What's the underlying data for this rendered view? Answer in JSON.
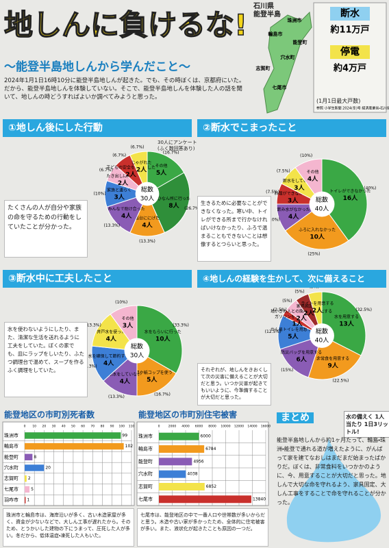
{
  "header": {
    "title": "地しんに負けるな!",
    "subtitle": "〜能登半島地しんから学んだこと〜",
    "intro": "2024年1月1日16時10分に能登半島地しんが起きた。でも、その時ぼくは、京都府にいた。だから、能登半島地しんを体験していない。そこで、能登半島地しんを体験した人の話を聞いて、地しんの時どうすればよいか調べてみようと思った。"
  },
  "map": {
    "title": "石川県 能登半島",
    "towns": [
      "珠洲市",
      "輪島市",
      "能登町",
      "穴水町",
      "志賀町",
      "七尾市"
    ]
  },
  "info": {
    "items": [
      {
        "label": "断水",
        "value": "約11万戸"
      },
      {
        "label": "停電",
        "value": "約4万戸"
      }
    ],
    "note": "(1月1日最大戸数)",
    "source": "参照 小学生新聞 2024(冬)号 経済産業省・石川県HP"
  },
  "chart_data": [
    {
      "type": "pie",
      "title": "①地しん後にした行動",
      "note": "30人にアンケート(ふく数回答あり)",
      "total_title": "総数",
      "total": "30人",
      "categories": [
        "その他",
        "ひなん所に行った",
        "高台ににげた",
        "みんなで助け合った",
        "家族と連らく",
        "たき出しに行った",
        "子どもの安全を確にんした",
        "じゃがれた"
      ],
      "values": [
        5,
        8,
        4,
        4,
        3,
        2,
        2,
        2
      ],
      "value_labels": [
        "5人",
        "8人",
        "4人",
        "4人",
        "3人",
        "2人",
        "2人",
        "2人"
      ],
      "percent_labels": [
        "(16.7%)",
        "(26.7%)",
        "(13.3%)",
        "(13.3%)",
        "(10%)",
        "(6.7%)",
        "(6.7%)",
        "(6.7%)"
      ],
      "colors": [
        "#3aa845",
        "#2f8f3a",
        "#f29a1e",
        "#8a5cb5",
        "#3d7fd6",
        "#f4b6cf",
        "#c9302c",
        "#f3e34a"
      ],
      "comment": "たくさんの人が自分や家族の命を守るための行動をしていたことが分かった。"
    },
    {
      "type": "pie",
      "title": "②断水でこまったこと",
      "total_title": "総数",
      "total": "40人",
      "categories": [
        "トイレができなかった",
        "ふろに入れなかった",
        "飲み水がなかった",
        "料理ができなかった",
        "断水をしていない",
        "その他"
      ],
      "values": [
        16,
        10,
        4,
        3,
        3,
        4
      ],
      "value_labels": [
        "16人",
        "10人",
        "4人",
        "3人",
        "3人",
        "4人"
      ],
      "percent_labels": [
        "(40%)",
        "(25%)",
        "(10%)",
        "(7.5%)",
        "(7.5%)",
        "(10%)"
      ],
      "colors": [
        "#3aa845",
        "#f29a1e",
        "#8a5cb5",
        "#c9302c",
        "#f3e34a",
        "#f4b6cf"
      ],
      "comment": "生きるために必要なことができなくなった。寒い中、トイレができる所まで行かなければいけなかったり、ふろで温まることもできないことは想像するとつらいと思った。"
    },
    {
      "type": "pie",
      "title": "③断水中に工夫したこと",
      "total_title": "総数",
      "total": "30人",
      "categories": [
        "水をもらいに行った",
        "紙皿や紙コップを使う",
        "断水をしていない",
        "水を確保して節約する",
        "井戸水を使った",
        "その他"
      ],
      "values": [
        10,
        5,
        4,
        4,
        4,
        3
      ],
      "value_labels": [
        "10人",
        "5人",
        "4人",
        "4人",
        "4人",
        "3人"
      ],
      "percent_labels": [
        "(33.3%)",
        "(16.7%)",
        "(13.3%)",
        "(13.3%)",
        "(13.3%)",
        "(10%)"
      ],
      "colors": [
        "#3aa845",
        "#f29a1e",
        "#8a5cb5",
        "#3d7fd6",
        "#f3e34a",
        "#f4b6cf"
      ],
      "comment": "水を使わないようにしたり、また、清潔な生活を送れるように工夫をしていた。ぼくの家でも、皿にラップをしいたり、ふたつ調理台で温めて、スープを作るふく調理をしていた。"
    },
    {
      "type": "pie",
      "title": "④地しんの経験を生かして、次に備えること",
      "total_title": "総数",
      "total": "40人",
      "categories": [
        "水を用意する",
        "非常食を用意する",
        "防災バッグを用意する",
        "かん易トイレを用意する",
        "ガソリンを満タンにする",
        "地いきの人との関わりを強化する",
        "家具固定する",
        "ライトを用意する"
      ],
      "values": [
        13,
        9,
        6,
        5,
        1,
        2,
        2,
        2
      ],
      "value_labels": [
        "13人",
        "9人",
        "6人",
        "5人",
        "1人",
        "2人",
        "2人",
        "2人"
      ],
      "percent_labels": [
        "(32.5%)",
        "(22.5%)",
        "(15%)",
        "(12.5%)",
        "(2.5%)",
        "(5%)",
        "(5%)",
        "(5%)"
      ],
      "colors": [
        "#3aa845",
        "#f29a1e",
        "#8a5cb5",
        "#3d7fd6",
        "#c9302c",
        "#f4b6cf",
        "#9e2a2a",
        "#f3e34a"
      ],
      "comment": "それぞれが、地しんをきおくして次の災害に備えることが大切だと思う。いつか災害が起きてもいいように、今準備することが大切だと思った。"
    },
    {
      "type": "bar",
      "title": "能登地区の市町別死者数",
      "categories": [
        "珠洲市",
        "輪島市",
        "能登町",
        "穴水町",
        "志賀町",
        "七尾市",
        "羽咋市"
      ],
      "values": [
        99,
        102,
        8,
        20,
        2,
        5,
        1
      ],
      "colors": [
        "#3aa845",
        "#f29a1e",
        "#8a5cb5",
        "#3d7fd6",
        "#f3e34a",
        "#f4b6cf",
        "#c9302c"
      ],
      "xlim": [
        0,
        110
      ],
      "xticks": [
        0,
        10,
        20,
        30,
        40,
        50,
        60,
        70,
        80,
        90,
        100,
        110
      ],
      "grid": true,
      "comment": "珠洲市と輪島市は、海岸沿いが多く、古い木造家屋が多く、資金が少ないなどで、大しん工事が遅れたから。そのため、とうかいした建物の下にうまって、圧死した人が多い。冬だから、低体温症・凍死した人もいた。"
    },
    {
      "type": "bar",
      "title": "能登地区の市町別住宅被害",
      "categories": [
        "珠洲市",
        "輪島市",
        "能登町",
        "穴水町",
        "志賀町",
        "七尾市"
      ],
      "values": [
        6000,
        6784,
        4956,
        4038,
        6852,
        13840
      ],
      "colors": [
        "#3aa845",
        "#f29a1e",
        "#8a5cb5",
        "#3d7fd6",
        "#f3e34a",
        "#c9302c"
      ],
      "xlim": [
        0,
        16000
      ],
      "xticks": [
        0,
        2000,
        4000,
        6000,
        8000,
        10000,
        12000,
        14000,
        16000
      ],
      "grid": true,
      "comment": "七尾市は、能登地区の中で一番人口や世帯数が多いからだと思う。木造や古い家が多かったため、全体的に住宅被害が多い。また、液状化が起きたことも原因の一つだ。"
    }
  ],
  "summary": {
    "title": "まとめ",
    "water": "水の備えく 1人当たり 1日3リットル!",
    "text": "能登半島地しんから約1ヶ月たって、輪島・珠洲・能登で通れる道が増えたように、がんばって家を建てなおしはまだまだ始まったばかりだ。ぼくは、非常食料をいつかかのように、今、用意することが大切だと思った。地しんで大切な命を守れるよう、家具固定、大しん工事をすることで命を守れることが分かった。"
  }
}
